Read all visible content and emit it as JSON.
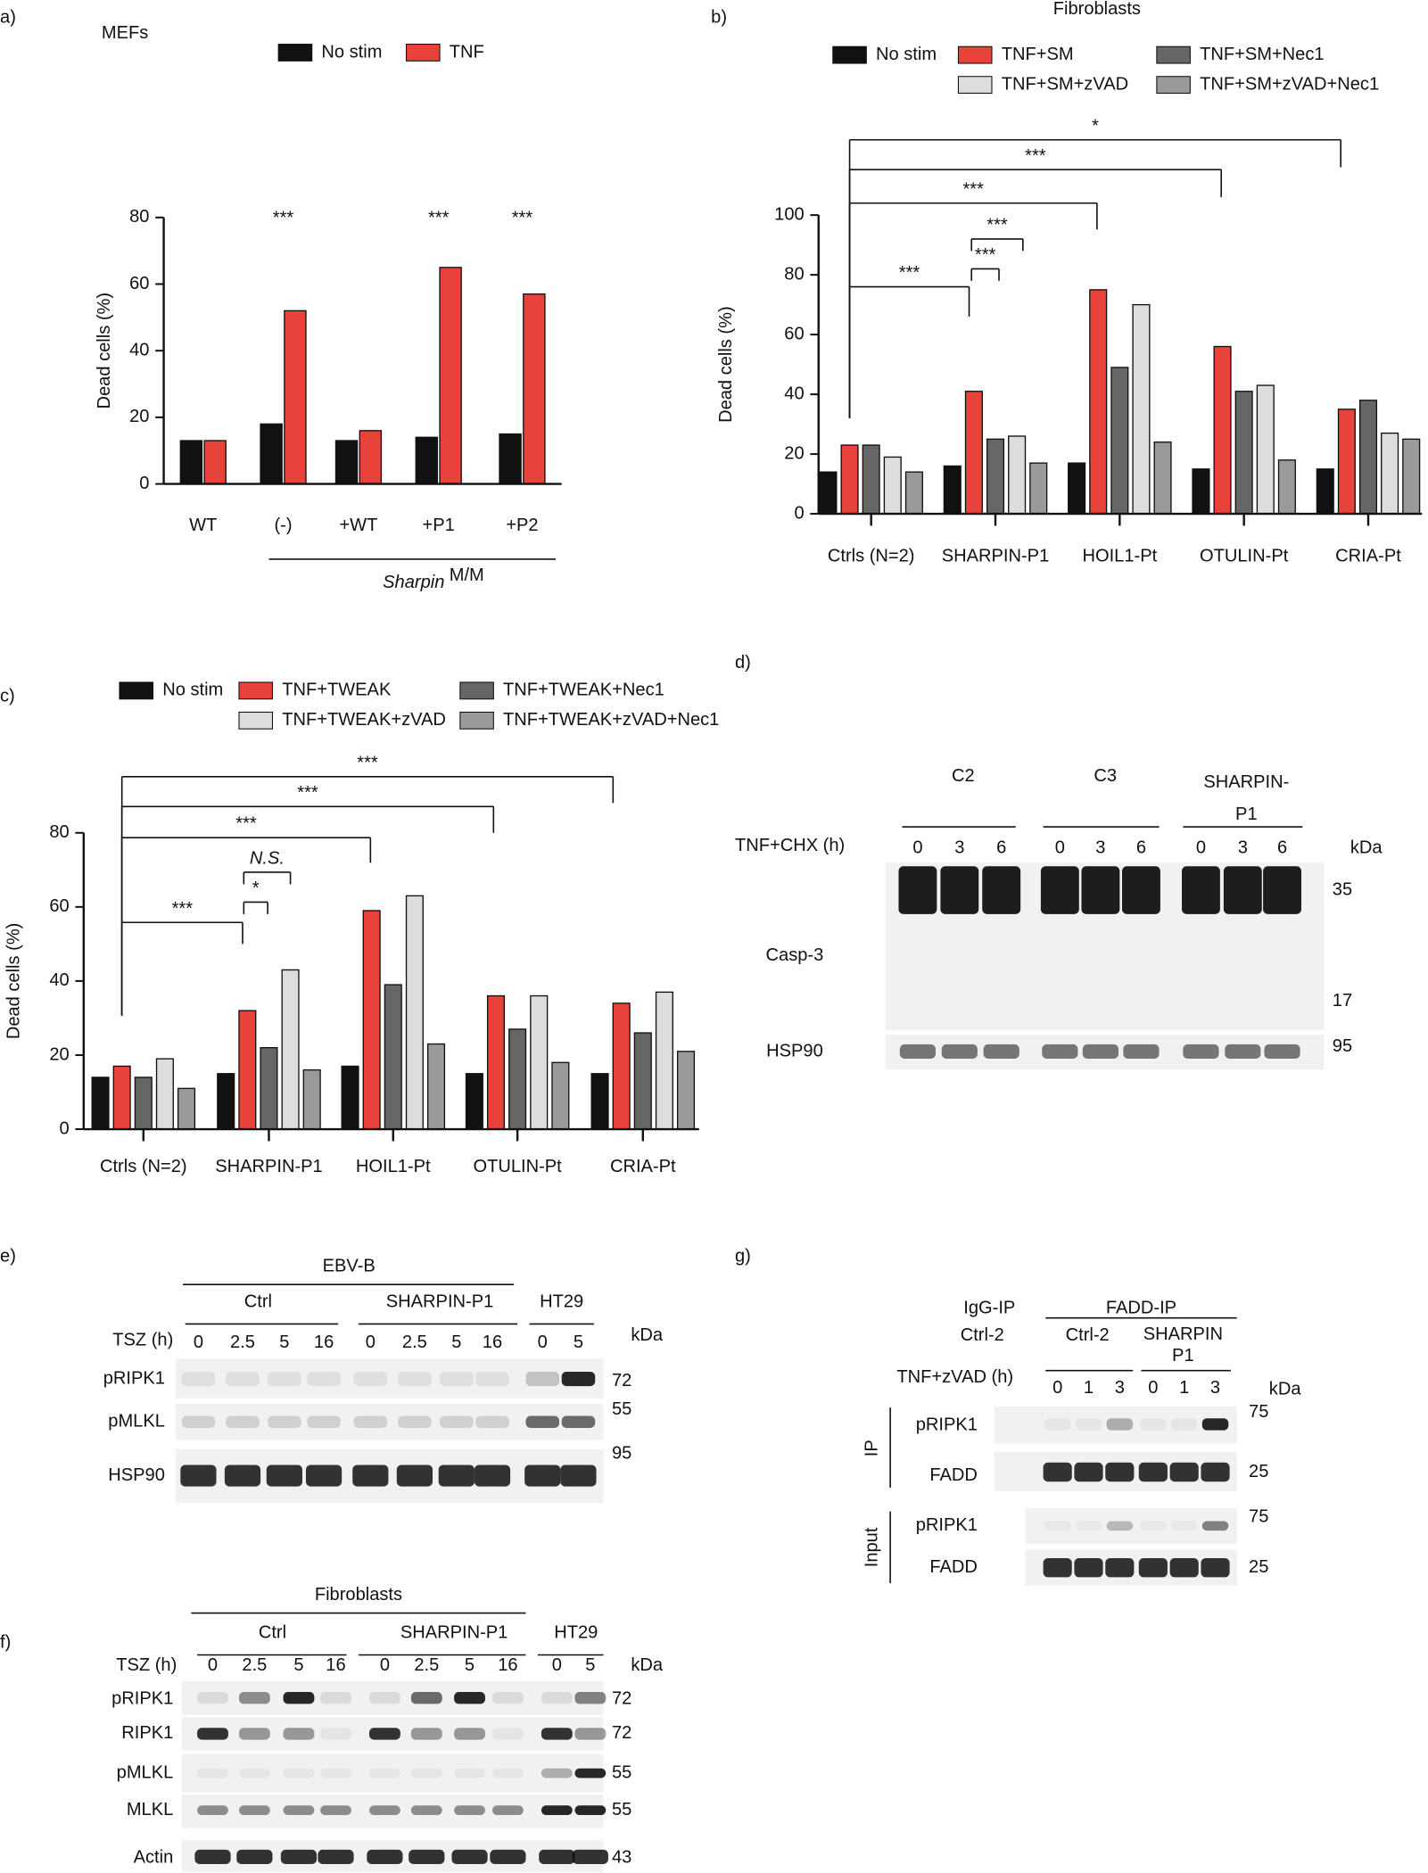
{
  "chart_data": [
    {
      "type": "bar",
      "panel": "a)",
      "title": "MEFs",
      "ylabel": "Dead cells (%)",
      "categories": [
        "WT",
        "(-)",
        "+WT",
        "+P1",
        "+P2"
      ],
      "series": [
        {
          "name": "No stim",
          "color": "#111111",
          "values": [
            13,
            18,
            13,
            14,
            15
          ]
        },
        {
          "name": "TNF",
          "color": "#e8423a",
          "values": [
            13,
            52,
            16,
            65,
            57
          ]
        }
      ],
      "ylim": [
        0,
        80
      ],
      "yticks": [
        0,
        20,
        40,
        60,
        80
      ],
      "annotations": [
        "***",
        "***",
        "***"
      ],
      "group_label": {
        "text": "Sharpin",
        "sup": "M/M"
      }
    },
    {
      "type": "bar",
      "panel": "b)",
      "title": "Fibroblasts",
      "ylabel": "Dead cells (%)",
      "categories": [
        "Ctrls (N=2)",
        "SHARPIN-P1",
        "HOIL1-Pt",
        "OTULIN-Pt",
        "CRIA-Pt"
      ],
      "series": [
        {
          "name": "No stim",
          "color": "#111111",
          "values": [
            14,
            16,
            17,
            15,
            15
          ]
        },
        {
          "name": "TNF+SM",
          "color": "#e8423a",
          "values": [
            23,
            41,
            75,
            56,
            35
          ]
        },
        {
          "name": "TNF+SM+Nec1",
          "color": "#666666",
          "values": [
            23,
            25,
            49,
            41,
            38
          ]
        },
        {
          "name": "TNF+SM+zVAD",
          "color": "#dddddd",
          "values": [
            19,
            26,
            70,
            43,
            27
          ]
        },
        {
          "name": "TNF+SM+zVAD+Nec1",
          "color": "#9a9a9a",
          "values": [
            14,
            17,
            24,
            18,
            25
          ]
        }
      ],
      "ylim": [
        0,
        100
      ],
      "yticks": [
        0,
        20,
        40,
        60,
        80,
        100
      ],
      "annotations": [
        "*",
        "***",
        "***",
        "***",
        "***",
        "***"
      ]
    },
    {
      "type": "bar",
      "panel": "c)",
      "ylabel": "Dead cells (%)",
      "categories": [
        "Ctrls (N=2)",
        "SHARPIN-P1",
        "HOIL1-Pt",
        "OTULIN-Pt",
        "CRIA-Pt"
      ],
      "series": [
        {
          "name": "No stim",
          "color": "#111111",
          "values": [
            14,
            15,
            17,
            15,
            15
          ]
        },
        {
          "name": "TNF+TWEAK",
          "color": "#e8423a",
          "values": [
            17,
            32,
            59,
            36,
            34
          ]
        },
        {
          "name": "TNF+TWEAK+Nec1",
          "color": "#666666",
          "values": [
            14,
            22,
            39,
            27,
            26
          ]
        },
        {
          "name": "TNF+TWEAK+zVAD",
          "color": "#dddddd",
          "values": [
            19,
            43,
            63,
            36,
            37
          ]
        },
        {
          "name": "TNF+TWEAK+zVAD+Nec1",
          "color": "#9a9a9a",
          "values": [
            11,
            16,
            23,
            18,
            21
          ]
        }
      ],
      "ylim": [
        0,
        80
      ],
      "yticks": [
        0,
        20,
        40,
        60,
        80
      ],
      "annotations": [
        "***",
        "***",
        "***",
        "N.S.",
        "*",
        "***"
      ]
    }
  ],
  "blots": [
    {
      "panel": "d)",
      "groups": [
        "C2",
        "C3",
        [
          "SHARPIN-",
          "P1"
        ]
      ],
      "treatment": "TNF+CHX (h)",
      "times": [
        "0",
        "3",
        "6",
        "0",
        "3",
        "6",
        "0",
        "3",
        "6"
      ],
      "unit": "kDa",
      "rows": [
        {
          "label": "Casp-3",
          "markers": [
            "35",
            "17"
          ]
        },
        {
          "label": "HSP90",
          "markers": [
            "95"
          ]
        }
      ]
    },
    {
      "panel": "e)",
      "header": "EBV-B",
      "groups": [
        "Ctrl",
        "SHARPIN-P1",
        "HT29"
      ],
      "treatment": "TSZ (h)",
      "times": [
        "0",
        "2.5",
        "5",
        "16",
        "0",
        "2.5",
        "5",
        "16",
        "0",
        "5"
      ],
      "unit": "kDa",
      "rows": [
        {
          "label": "pRIPK1",
          "markers": [
            "72"
          ]
        },
        {
          "label": "pMLKL",
          "markers": [
            "55"
          ]
        },
        {
          "label": "HSP90",
          "markers": [
            "95"
          ]
        }
      ]
    },
    {
      "panel": "f)",
      "header": "Fibroblasts",
      "groups": [
        "Ctrl",
        "SHARPIN-P1",
        "HT29"
      ],
      "treatment": "TSZ (h)",
      "times": [
        "0",
        "2.5",
        "5",
        "16",
        "0",
        "2.5",
        "5",
        "16",
        "0",
        "5"
      ],
      "unit": "kDa",
      "rows": [
        {
          "label": "pRIPK1",
          "markers": [
            "72"
          ]
        },
        {
          "label": "RIPK1",
          "markers": [
            "72"
          ]
        },
        {
          "label": "pMLKL",
          "markers": [
            "55"
          ]
        },
        {
          "label": "MLKL",
          "markers": [
            "55"
          ]
        },
        {
          "label": "Actin",
          "markers": [
            "43"
          ]
        }
      ]
    },
    {
      "panel": "g)",
      "header": "FADD-IP",
      "control_header": "IgG-IP",
      "control_group": "Ctrl-2",
      "groups": [
        "Ctrl-2",
        [
          "SHARPIN",
          "P1"
        ]
      ],
      "treatment": "TNF+zVAD (h)",
      "times": [
        "0",
        "1",
        "3",
        "0",
        "1",
        "3"
      ],
      "unit": "kDa",
      "sections": [
        "IP",
        "Input"
      ],
      "rows": [
        {
          "label": "pRIPK1",
          "markers": [
            "75"
          ]
        },
        {
          "label": "FADD",
          "markers": [
            "25"
          ]
        },
        {
          "label": "pRIPK1",
          "markers": [
            "75"
          ]
        },
        {
          "label": "FADD",
          "markers": [
            "25"
          ]
        }
      ]
    }
  ]
}
